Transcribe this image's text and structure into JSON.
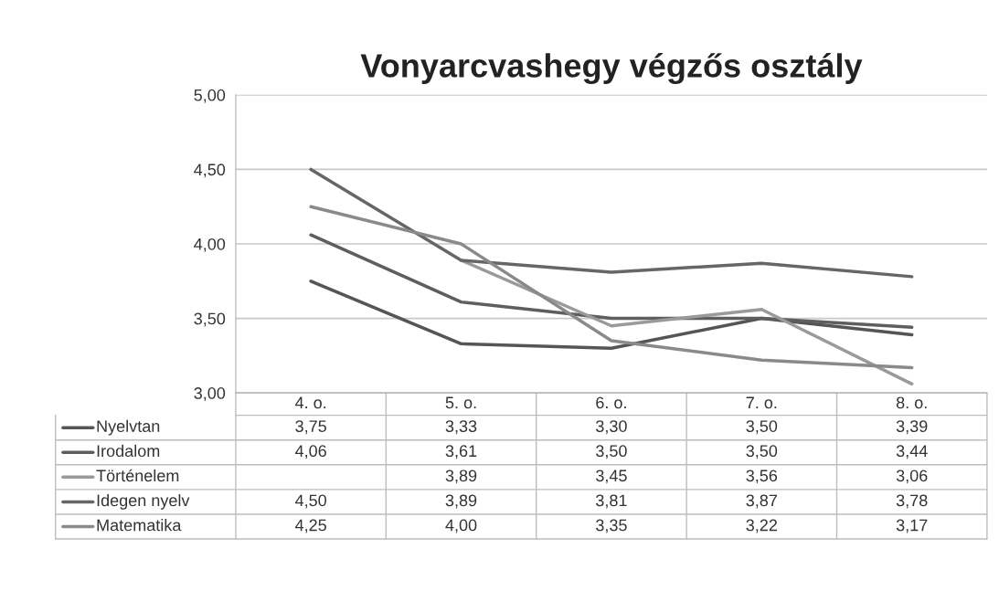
{
  "chart_data": {
    "type": "line",
    "title": "Vonyarcvashegy végzős osztály",
    "categories": [
      "4. o.",
      "5. o.",
      "6. o.",
      "7. o.",
      "8. o."
    ],
    "series": [
      {
        "name": "Nyelvtan",
        "color": "#555555",
        "values": [
          3.75,
          3.33,
          3.3,
          3.5,
          3.39
        ],
        "value_labels": [
          "3,75",
          "3,33",
          "3,30",
          "3,50",
          "3,39"
        ]
      },
      {
        "name": "Irodalom",
        "color": "#5e5e5e",
        "values": [
          4.06,
          3.61,
          3.5,
          3.5,
          3.44
        ],
        "value_labels": [
          "4,06",
          "3,61",
          "3,50",
          "3,50",
          "3,44"
        ]
      },
      {
        "name": "Történelem",
        "color": "#9a9a9a",
        "values": [
          null,
          3.89,
          3.45,
          3.56,
          3.06
        ],
        "value_labels": [
          null,
          "3,89",
          "3,45",
          "3,56",
          "3,06"
        ]
      },
      {
        "name": "Idegen nyelv",
        "color": "#666666",
        "values": [
          4.5,
          3.89,
          3.81,
          3.87,
          3.78
        ],
        "value_labels": [
          "4,50",
          "3,89",
          "3,81",
          "3,87",
          "3,78"
        ]
      },
      {
        "name": "Matematika",
        "color": "#8a8a8a",
        "values": [
          4.25,
          4.0,
          3.35,
          3.22,
          3.17
        ],
        "value_labels": [
          "4,25",
          "4,00",
          "3,35",
          "3,22",
          "3,17"
        ]
      }
    ],
    "ylim": [
      3.0,
      5.0
    ],
    "yticks": [
      {
        "value": 3.0,
        "label": "3,00"
      },
      {
        "value": 3.5,
        "label": "3,50"
      },
      {
        "value": 4.0,
        "label": "4,00"
      },
      {
        "value": 4.5,
        "label": "4,50"
      },
      {
        "value": 5.0,
        "label": "5,00"
      }
    ],
    "grid": "y",
    "legend": "bottom",
    "marker": "none",
    "line_style": "solid"
  }
}
